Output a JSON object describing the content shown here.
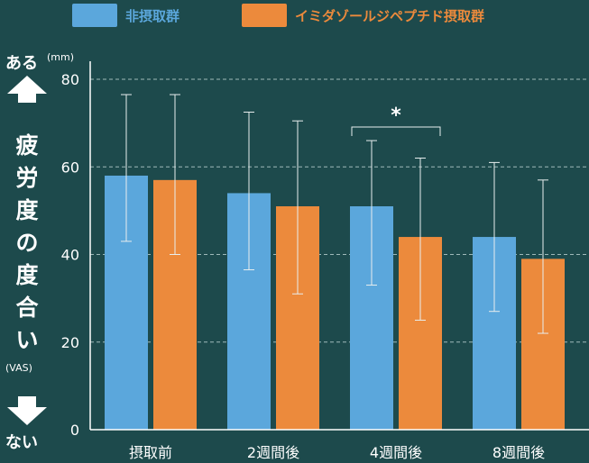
{
  "chart_data": {
    "type": "bar",
    "ylabel": "疲労度の度合い",
    "ylabel_sub": "(VAS)",
    "unit": "(mm)",
    "top_label": "ある",
    "bottom_label": "ない",
    "ylim": [
      0,
      80
    ],
    "yticks": [
      0,
      20,
      40,
      60,
      80
    ],
    "grid": true,
    "legend_position": "top",
    "categories": [
      "摂取前",
      "2週間後",
      "4週間後",
      "8週間後"
    ],
    "series": [
      {
        "name": "非摂取群",
        "color": "#5ba7dc",
        "values": [
          58,
          54,
          51,
          44
        ],
        "error_upper": [
          76.5,
          72.5,
          66,
          61
        ],
        "error_lower": [
          43,
          36.5,
          33,
          27
        ]
      },
      {
        "name": "イミダゾールジペプチド摂取群",
        "color": "#ec8a3c",
        "values": [
          57,
          51,
          44,
          39
        ],
        "error_upper": [
          76.5,
          70.5,
          62,
          57
        ],
        "error_lower": [
          40,
          31,
          25,
          22
        ]
      }
    ],
    "annotations": [
      {
        "category": "4週間後",
        "text": "*"
      }
    ]
  }
}
